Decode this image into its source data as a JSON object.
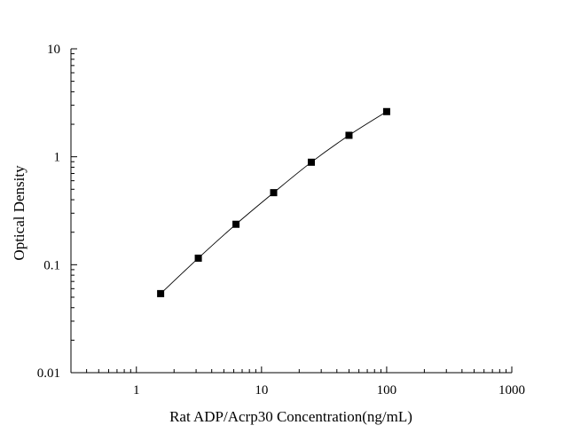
{
  "chart_data": {
    "type": "scatter",
    "xlabel": "Rat ADP/Acrp30 Concentration(ng/mL)",
    "ylabel": "Optical Density",
    "x_scale": "log",
    "y_scale": "log",
    "xlim": [
      0.3,
      1000
    ],
    "ylim": [
      0.01,
      10
    ],
    "x_ticks": [
      {
        "value": 1,
        "label": "1"
      },
      {
        "value": 10,
        "label": "10"
      },
      {
        "value": 100,
        "label": "100"
      },
      {
        "value": 1000,
        "label": "1000"
      }
    ],
    "y_ticks": [
      {
        "value": 0.01,
        "label": "0.01"
      },
      {
        "value": 0.1,
        "label": "0.1"
      },
      {
        "value": 1,
        "label": "1"
      },
      {
        "value": 10,
        "label": "10"
      }
    ],
    "grid": false,
    "legend": "none",
    "fit_line": true,
    "points": [
      {
        "x": 1.5625,
        "y": 0.054
      },
      {
        "x": 3.125,
        "y": 0.115
      },
      {
        "x": 6.25,
        "y": 0.237
      },
      {
        "x": 12.5,
        "y": 0.465
      },
      {
        "x": 25,
        "y": 0.89
      },
      {
        "x": 50,
        "y": 1.58
      },
      {
        "x": 100,
        "y": 2.62
      }
    ],
    "marker_color": "#000000",
    "line_color": "#000000"
  }
}
